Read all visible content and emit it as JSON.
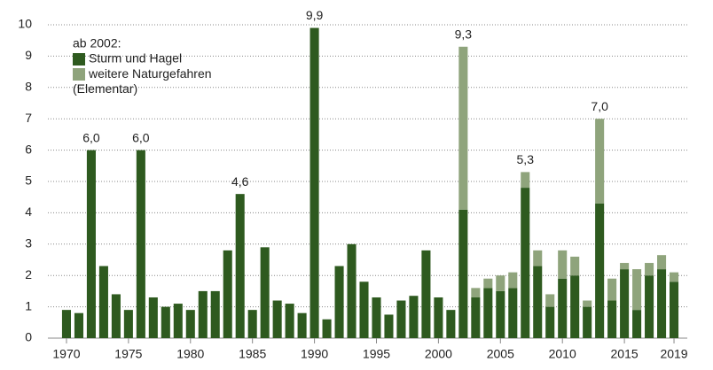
{
  "chart_data": {
    "type": "stacked_bar",
    "legend_title": "ab 2002:",
    "legend": "top-left",
    "grid": true,
    "x": [
      1970,
      1971,
      1972,
      1973,
      1974,
      1975,
      1976,
      1977,
      1978,
      1979,
      1980,
      1981,
      1982,
      1983,
      1984,
      1985,
      1986,
      1987,
      1988,
      1989,
      1990,
      1991,
      1992,
      1993,
      1994,
      1995,
      1996,
      1997,
      1998,
      1999,
      2000,
      2001,
      2002,
      2003,
      2004,
      2005,
      2006,
      2007,
      2008,
      2009,
      2010,
      2011,
      2012,
      2013,
      2014,
      2015,
      2016,
      2017,
      2018,
      2019
    ],
    "series": [
      {
        "name": "Sturm und Hagel",
        "color": "#2e5a1f",
        "values": [
          0.9,
          0.8,
          6.0,
          2.3,
          1.4,
          0.9,
          6.0,
          1.3,
          1.0,
          1.1,
          0.9,
          1.5,
          1.5,
          2.8,
          4.6,
          0.9,
          2.9,
          1.2,
          1.1,
          0.8,
          9.9,
          0.6,
          2.3,
          3.0,
          1.8,
          1.3,
          0.75,
          1.2,
          1.35,
          2.8,
          1.3,
          0.9,
          4.1,
          1.3,
          1.6,
          1.5,
          1.6,
          4.8,
          2.3,
          1.0,
          1.9,
          2.0,
          1.0,
          4.3,
          1.2,
          2.2,
          0.9,
          2.0,
          2.2,
          1.8
        ]
      },
      {
        "name": "weitere Naturgefahren (Elementar)",
        "color": "#8fa47c",
        "values": [
          null,
          null,
          null,
          null,
          null,
          null,
          null,
          null,
          null,
          null,
          null,
          null,
          null,
          null,
          null,
          null,
          null,
          null,
          null,
          null,
          null,
          null,
          null,
          null,
          null,
          null,
          null,
          null,
          null,
          null,
          null,
          null,
          5.2,
          0.3,
          0.3,
          0.5,
          0.5,
          0.5,
          0.5,
          0.4,
          0.9,
          0.6,
          0.2,
          2.7,
          0.7,
          0.2,
          1.3,
          0.4,
          0.45,
          0.3
        ]
      }
    ],
    "annotations": [
      {
        "x": 1972,
        "value": 6.0,
        "label": "6,0"
      },
      {
        "x": 1976,
        "value": 6.0,
        "label": "6,0"
      },
      {
        "x": 1984,
        "value": 4.6,
        "label": "4,6"
      },
      {
        "x": 1990,
        "value": 9.9,
        "label": "9,9"
      },
      {
        "x": 2002,
        "value": 9.3,
        "label": "9,3"
      },
      {
        "x": 2007,
        "value": 5.3,
        "label": "5,3"
      },
      {
        "x": 2013,
        "value": 7.0,
        "label": "7,0"
      }
    ],
    "xlim": [
      1968.5,
      2020.5
    ],
    "xticks": [
      1970,
      1975,
      1980,
      1985,
      1990,
      1995,
      2000,
      2005,
      2010,
      2015,
      2019
    ],
    "ylim": [
      0,
      10
    ],
    "yticks": [
      0,
      1,
      2,
      3,
      4,
      5,
      6,
      7,
      8,
      9,
      10
    ]
  }
}
